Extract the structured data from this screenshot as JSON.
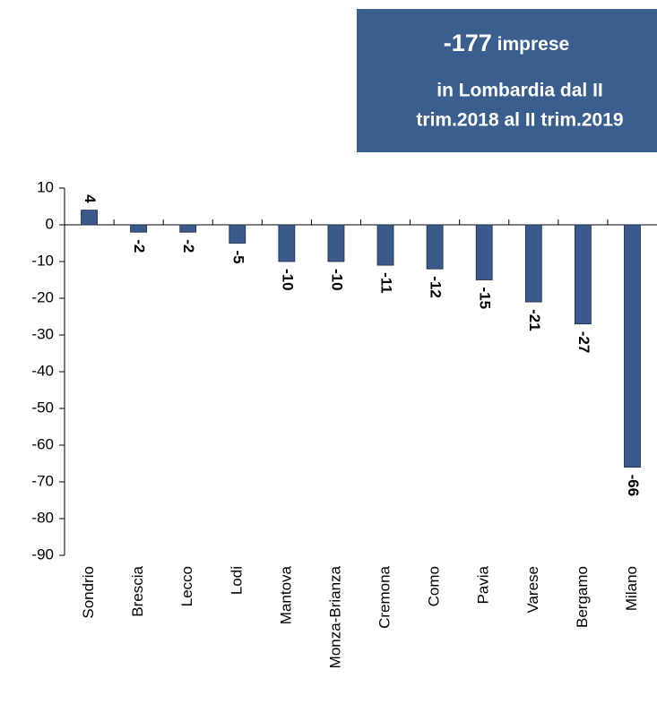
{
  "chart_data": {
    "type": "bar",
    "categories": [
      "Sondrio",
      "Brescia",
      "Lecco",
      "Lodi",
      "Mantova",
      "Monza-Brianza",
      "Cremona",
      "Como",
      "Pavia",
      "Varese",
      "Bergamo",
      "Milano"
    ],
    "values": [
      4,
      -2,
      -2,
      -5,
      -10,
      -10,
      -11,
      -12,
      -15,
      -21,
      -27,
      -66
    ],
    "color": "#3a5a8c",
    "ylim": [
      -90,
      10
    ],
    "yticks": [
      10,
      0,
      -10,
      -20,
      -30,
      -40,
      -50,
      -60,
      -70,
      -80,
      -90
    ],
    "annotation": {
      "highlight": "-177",
      "lines": [
        "imprese",
        "in Lombardia dal II",
        "trim.2018 al II trim.2019"
      ]
    }
  }
}
